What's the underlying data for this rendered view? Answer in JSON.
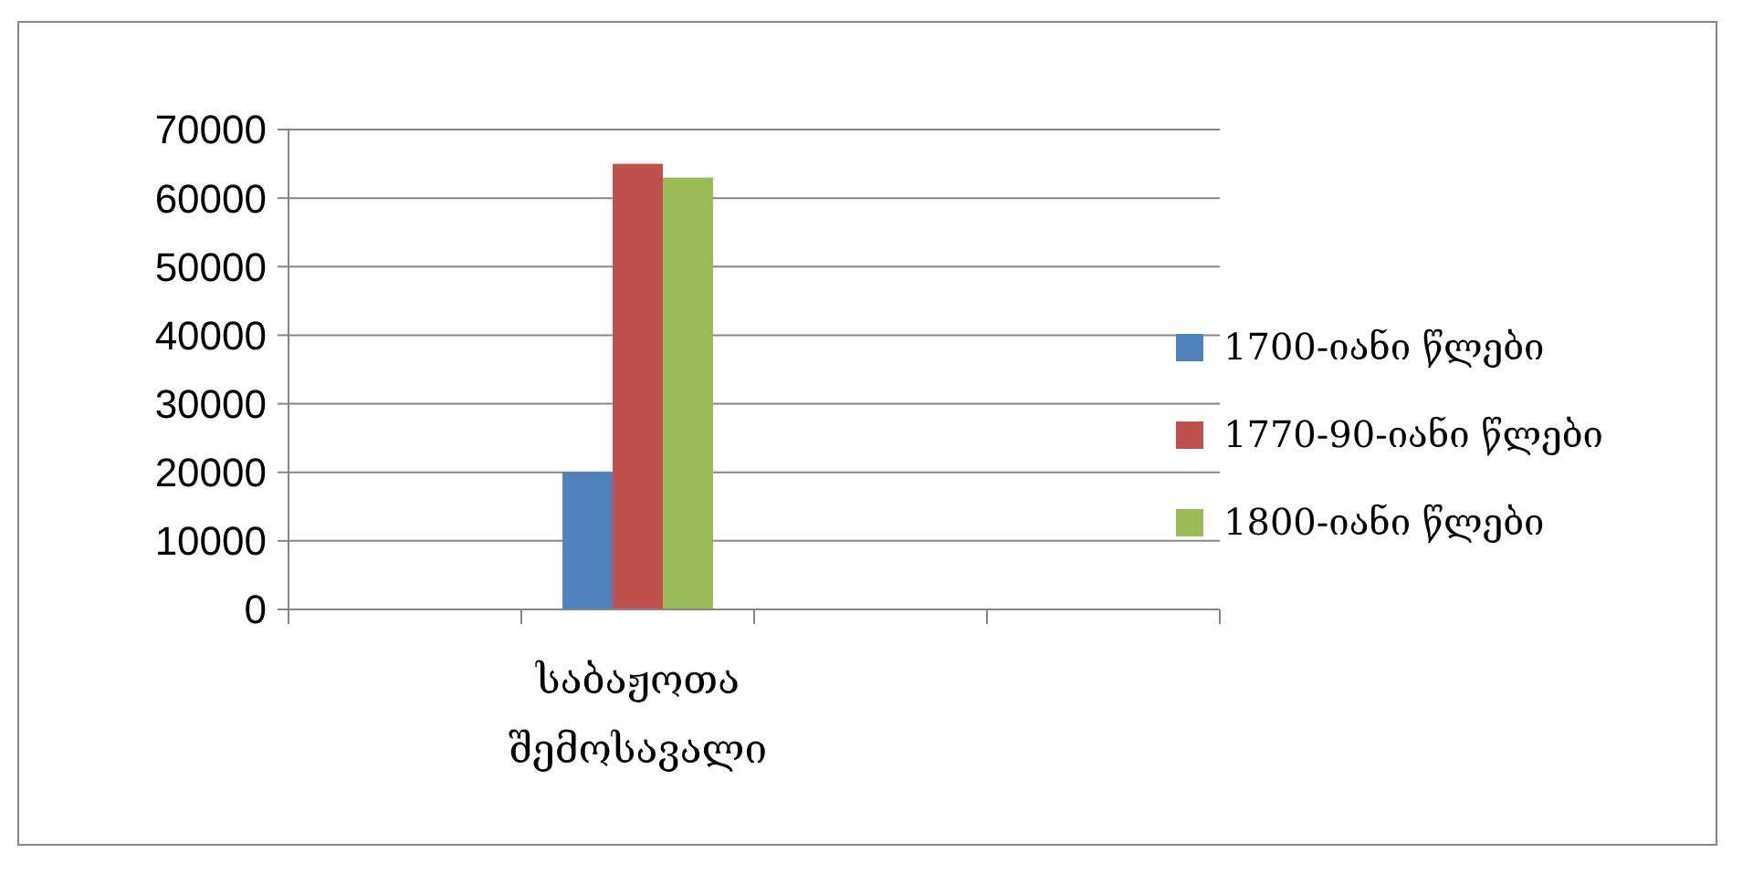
{
  "chart_data": {
    "type": "bar",
    "categories": [
      null,
      "საბაჟოთა შემოსავალი",
      null,
      null
    ],
    "series": [
      {
        "name": "1700-იანი წლები",
        "color": "#4f81bd",
        "values": [
          null,
          20000,
          null,
          null
        ]
      },
      {
        "name": "1770-90-იანი წლები",
        "color": "#c0504d",
        "values": [
          null,
          65000,
          null,
          null
        ]
      },
      {
        "name": "1800-იანი წლები",
        "color": "#9bbb59",
        "values": [
          null,
          63000,
          null,
          null
        ]
      }
    ],
    "ylim": [
      0,
      70000
    ],
    "yticks": [
      0,
      10000,
      20000,
      30000,
      40000,
      50000,
      60000,
      70000
    ],
    "grid": "y",
    "legend": "right"
  }
}
